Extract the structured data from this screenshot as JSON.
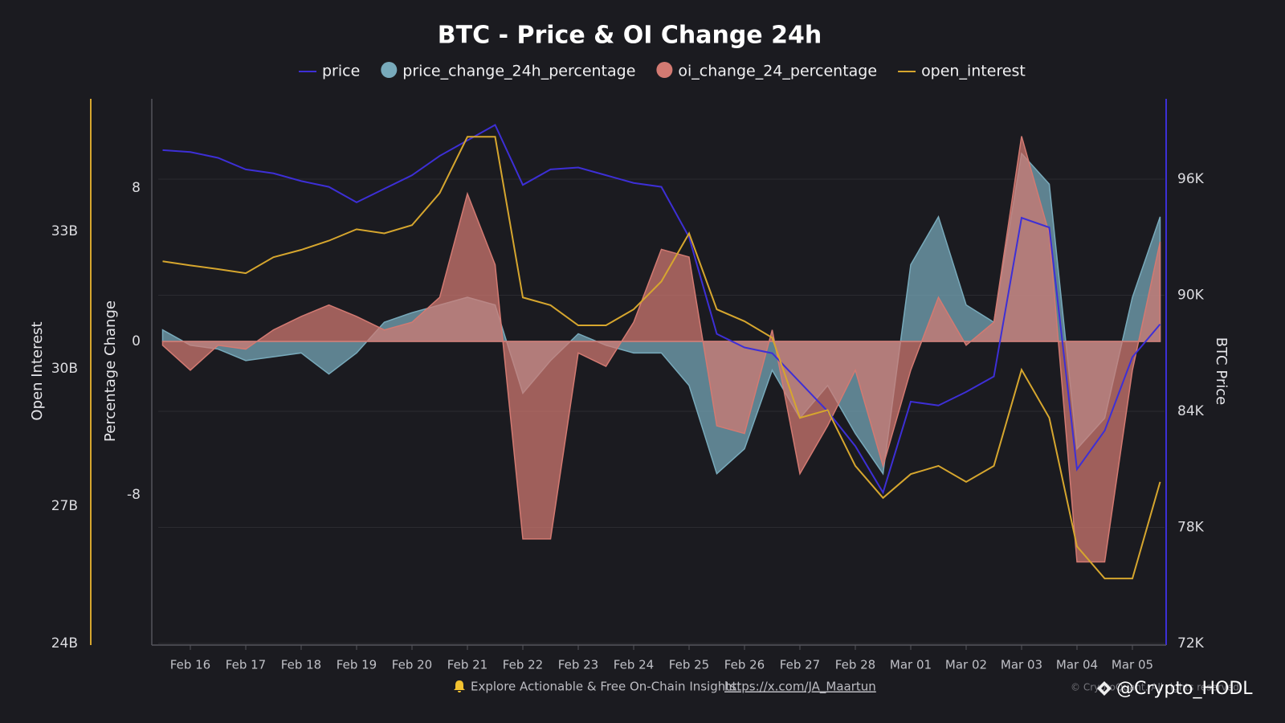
{
  "chart_data": {
    "type": "combo",
    "title": "BTC - Price & OI Change 24h",
    "categories": [
      null,
      "Feb 16",
      null,
      "Feb 17",
      null,
      "Feb 18",
      null,
      "Feb 19",
      null,
      "Feb 20",
      null,
      "Feb 21",
      null,
      "Feb 22",
      null,
      "Feb 23",
      null,
      "Feb 24",
      null,
      "Feb 25",
      null,
      "Feb 26",
      null,
      "Feb 27",
      null,
      "Feb 28",
      null,
      "Mar 01",
      null,
      "Mar 02",
      null,
      "Mar 03",
      null,
      "Mar 04",
      null,
      "Mar 05",
      null
    ],
    "ylabel": "Percentage Change",
    "ylim": [
      -15.75,
      12.65
    ],
    "yticks": [
      -8,
      0,
      8
    ],
    "y2label": "BTC Price",
    "y2lim": [
      72000,
      100150
    ],
    "y2ticks": [
      {
        "value": 72000,
        "label": "72K"
      },
      {
        "value": 78000,
        "label": "78K"
      },
      {
        "value": 84000,
        "label": "84K"
      },
      {
        "value": 90000,
        "label": "90K"
      },
      {
        "value": 96000,
        "label": "96K"
      }
    ],
    "y3label": "Open Interest",
    "y3lim": [
      24,
      35.9
    ],
    "y3ticks": [
      {
        "value": 24,
        "label": "24B"
      },
      {
        "value": 27,
        "label": "27B"
      },
      {
        "value": 30,
        "label": "30B"
      },
      {
        "value": 33,
        "label": "33B"
      }
    ],
    "grid": "y2",
    "legend": "top",
    "series": [
      {
        "name": "price",
        "kind": "line",
        "axis": "y2",
        "color": "#3d2fd6",
        "values": [
          97500,
          97400,
          97100,
          96500,
          96300,
          95900,
          95600,
          94800,
          95500,
          96200,
          97200,
          98000,
          98800,
          95700,
          96500,
          96600,
          96200,
          95800,
          95600,
          93000,
          88000,
          87300,
          87000,
          85500,
          84000,
          82200,
          79800,
          84500,
          84300,
          85000,
          85800,
          94000,
          93500,
          81000,
          83000,
          86800,
          88500
        ]
      },
      {
        "name": "price_change_24h_percentage",
        "kind": "area",
        "axis": "y",
        "color": "#78aabb",
        "values": [
          0.6,
          -0.2,
          -0.4,
          -1.0,
          -0.8,
          -0.6,
          -1.7,
          -0.6,
          1.0,
          1.5,
          1.9,
          2.3,
          1.9,
          -2.7,
          -1.0,
          0.4,
          -0.2,
          -0.6,
          -0.6,
          -2.3,
          -6.9,
          -5.6,
          -1.5,
          -4.0,
          -2.3,
          -4.8,
          -6.9,
          4.0,
          6.5,
          1.9,
          1.0,
          9.8,
          8.2,
          -5.6,
          -4.0,
          2.3,
          6.5
        ]
      },
      {
        "name": "oi_change_24_percentage",
        "kind": "area",
        "axis": "y",
        "color": "#d37a72",
        "values": [
          -0.2,
          -1.5,
          -0.2,
          -0.4,
          0.6,
          1.3,
          1.9,
          1.3,
          0.6,
          1.0,
          2.3,
          7.7,
          4.0,
          -10.3,
          -10.3,
          -0.6,
          -1.3,
          1.0,
          4.8,
          4.4,
          -4.4,
          -4.8,
          0.6,
          -6.9,
          -4.4,
          -1.5,
          -6.5,
          -1.5,
          2.3,
          -0.2,
          1.0,
          10.7,
          5.6,
          -11.5,
          -11.5,
          -1.5,
          5.2
        ]
      },
      {
        "name": "open_interest",
        "kind": "line",
        "axis": "y3",
        "color": "#d6a62e",
        "values": [
          32.35,
          32.26,
          32.18,
          32.09,
          32.44,
          32.6,
          32.8,
          33.05,
          32.96,
          33.14,
          33.84,
          35.07,
          35.07,
          31.56,
          31.39,
          30.95,
          30.95,
          31.3,
          31.91,
          32.96,
          31.3,
          31.04,
          30.68,
          28.93,
          29.1,
          27.88,
          27.18,
          27.7,
          27.88,
          27.53,
          27.88,
          29.98,
          28.93,
          26.12,
          25.42,
          25.42,
          27.53
        ]
      }
    ]
  },
  "footer": {
    "text": "Explore Actionable & Free On-Chain Insights:",
    "link": "https://x.com/JA_Maartun",
    "copyright": "© CryptoQuant. All rights reserved.",
    "watermark": "@Crypto_HODL"
  }
}
